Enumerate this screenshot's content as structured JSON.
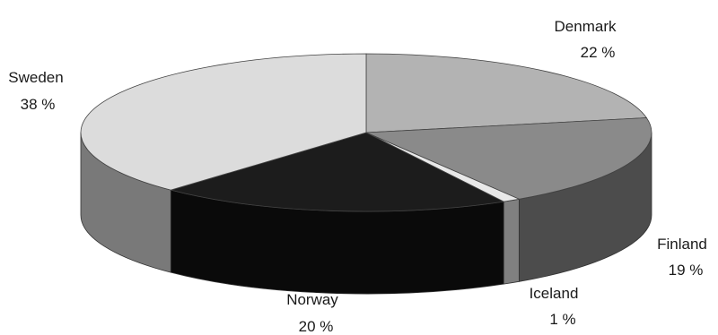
{
  "chart_data": {
    "type": "pie",
    "style": "3d",
    "title": "",
    "slices": [
      {
        "label": "Denmark",
        "value": 22,
        "value_label": "22 %",
        "color": "#b3b3b3"
      },
      {
        "label": "Finland",
        "value": 19,
        "value_label": "19 %",
        "color": "#8a8a8a"
      },
      {
        "label": "Iceland",
        "value": 1,
        "value_label": "1 %",
        "color": "#e8e8e8"
      },
      {
        "label": "Norway",
        "value": 20,
        "value_label": "20 %",
        "color": "#1c1c1c"
      },
      {
        "label": "Sweden",
        "value": 38,
        "value_label": "38 %",
        "color": "#dcdcdc"
      }
    ]
  }
}
